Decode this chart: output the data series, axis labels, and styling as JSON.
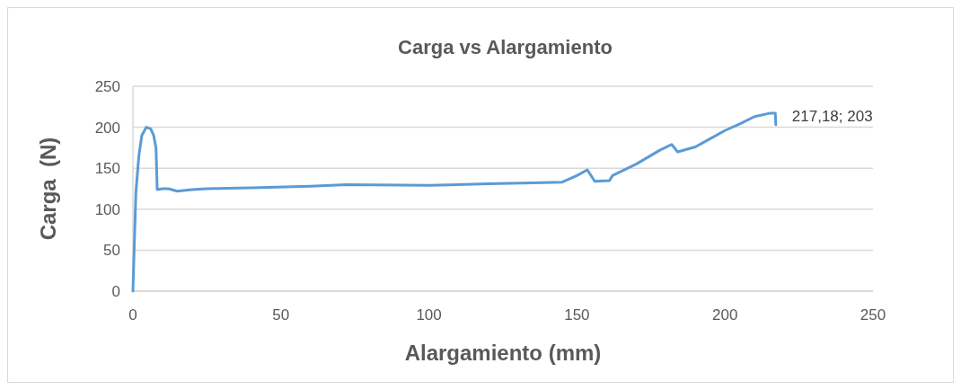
{
  "chart_data": {
    "type": "line",
    "title": "Carga vs Alargamiento",
    "xlabel": "Alargamiento (mm)",
    "ylabel": "Carga  (N)",
    "xlim": [
      0,
      250
    ],
    "xticks": [
      0,
      50,
      100,
      150,
      200,
      250
    ],
    "ylim": [
      0,
      250
    ],
    "yticks": [
      0,
      50,
      100,
      150,
      200,
      250
    ],
    "grid": "y",
    "marker": "none",
    "line_style": "solid",
    "series": [
      {
        "color": "#5b9bd5",
        "x": [
          0,
          0.5,
          1,
          2,
          3,
          4.5,
          6,
          7,
          7.8,
          8.2,
          10,
          12,
          15,
          20,
          25,
          40,
          60,
          72,
          100,
          120,
          135,
          145,
          150,
          153.5,
          156,
          161,
          162,
          170,
          178,
          182,
          184,
          190,
          195,
          200,
          205,
          210,
          215,
          217,
          217.18
        ],
        "values": [
          0,
          60,
          120,
          165,
          190,
          200,
          198,
          190,
          175,
          124,
          125,
          125,
          122,
          124,
          125,
          126,
          128,
          130,
          129,
          131,
          132,
          133,
          141,
          148,
          134,
          135,
          141,
          155,
          172,
          179,
          170,
          176,
          186,
          196,
          204,
          213,
          217,
          217,
          203
        ]
      }
    ],
    "annotations": [
      {
        "text": "217,18; 203",
        "x": 217.18,
        "y": 203
      }
    ]
  }
}
